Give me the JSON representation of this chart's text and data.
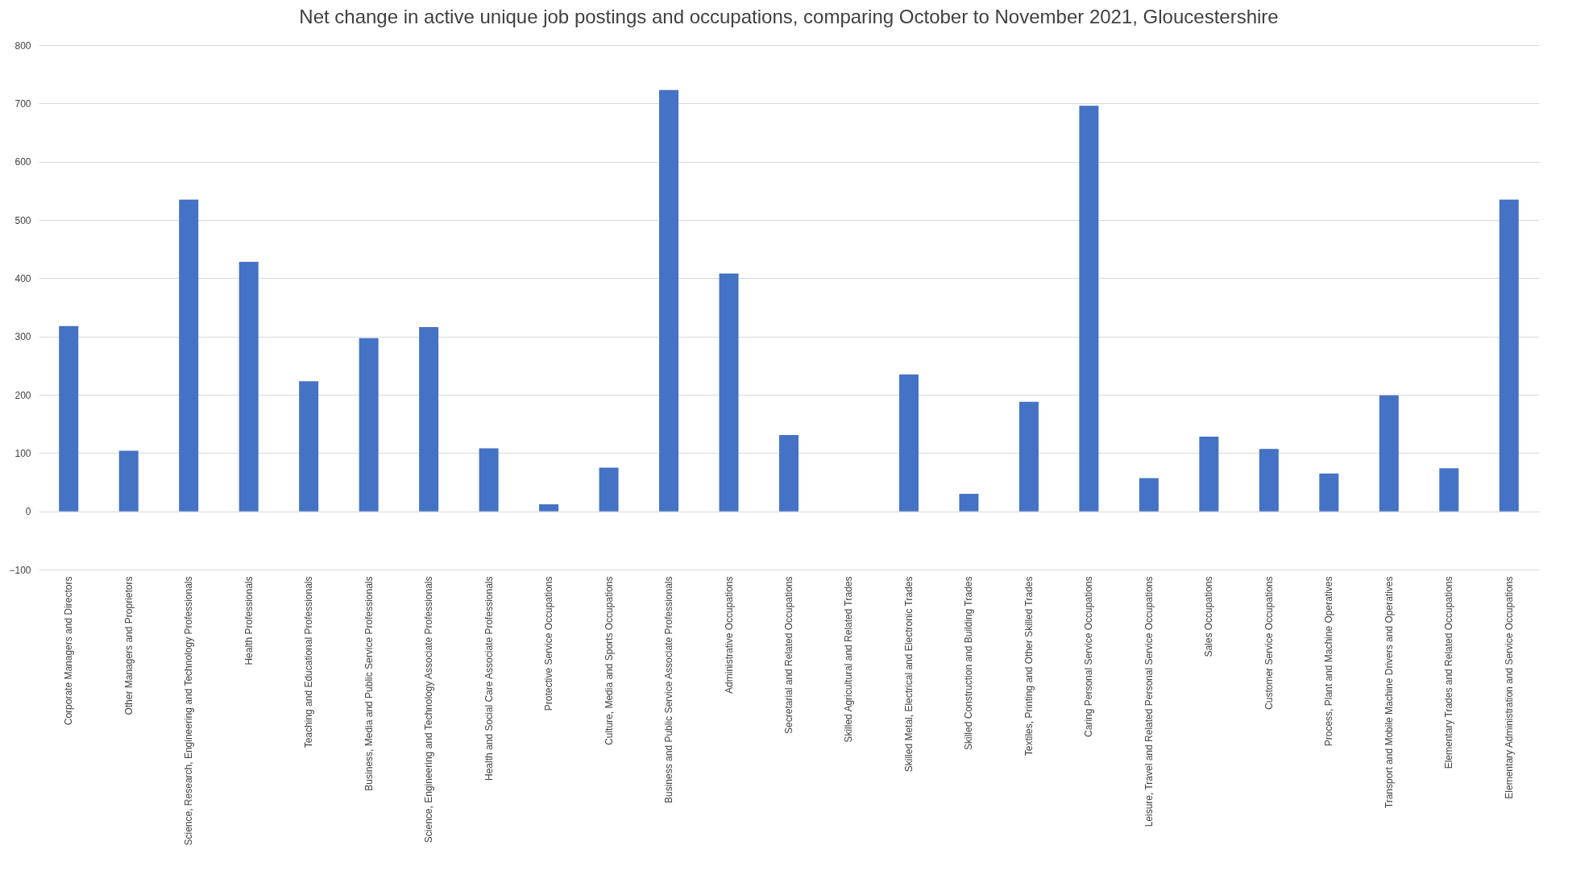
{
  "chart_data": {
    "type": "bar",
    "title": "Net change in active unique job postings and occupations, comparing October to November 2021, Gloucestershire",
    "categories": [
      "Corporate Managers and Directors",
      "Other Managers and Proprietors",
      "Science, Research, Engineering and Technology Professionals",
      "Health Professionals",
      "Teaching and Educational Professionals",
      "Business, Media and Public Service Professionals",
      "Science, Engineering and Technology Associate Professionals",
      "Health and Social Care Associate Professionals",
      "Protective Service Occupations",
      "Culture, Media and Sports Occupations",
      "Business and Public Service Associate Professionals",
      "Administrative Occupations",
      "Secretarial and Related Occupations",
      "Skilled Agricultural and Related Trades",
      "Skilled Metal, Electrical and Electronic Trades",
      "Skilled Construction and Building Trades",
      "Textiles, Printing and Other Skilled Trades",
      "Caring Personal Service Occupations",
      "Leisure, Travel and Related Personal Service Occupations",
      "Sales Occupations",
      "Customer Service Occupations",
      "Process, Plant and Machine Operatives",
      "Transport and Mobile Machine Drivers and Operatives",
      "Elementary Trades and Related Occupations",
      "Elementary Administration and Service Occupations"
    ],
    "values": [
      318,
      104,
      535,
      428,
      223,
      297,
      316,
      108,
      12,
      75,
      723,
      408,
      131,
      0,
      235,
      30,
      188,
      696,
      57,
      128,
      107,
      65,
      199,
      74,
      535
    ],
    "color": "#4472c4",
    "ylim": [
      -100,
      800
    ],
    "yticks": [
      -100,
      0,
      100,
      200,
      300,
      400,
      500,
      600,
      700,
      800
    ],
    "grid": "y"
  }
}
